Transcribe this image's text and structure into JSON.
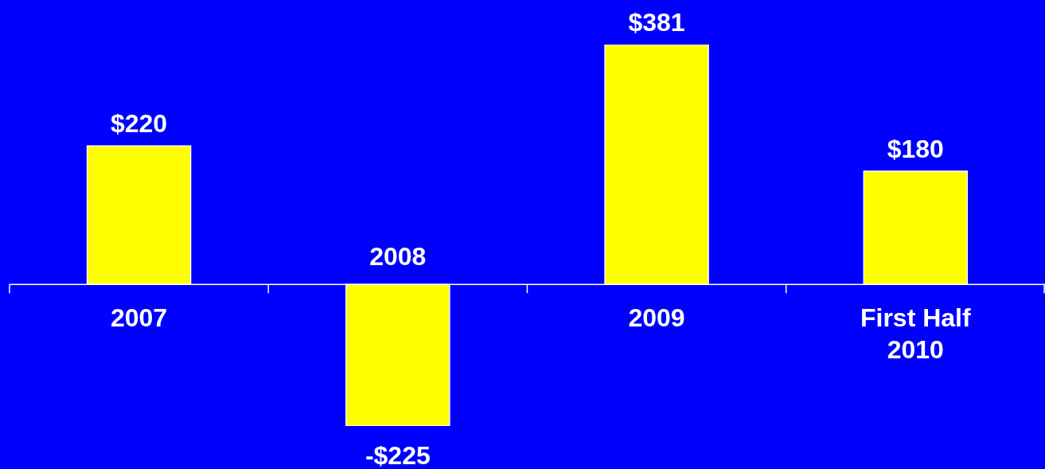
{
  "chart_data": {
    "type": "bar",
    "categories": [
      "2007",
      "2008",
      "2009",
      "First Half 2010"
    ],
    "values": [
      220,
      -225,
      381,
      180
    ],
    "value_labels": [
      "$220",
      "-$225",
      "$381",
      "$180"
    ],
    "color": "#ffff00",
    "grid": false,
    "legend": false
  }
}
